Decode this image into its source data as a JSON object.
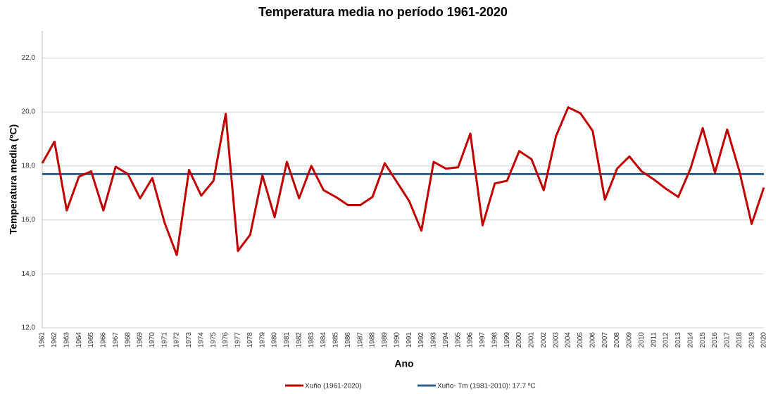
{
  "chart_data": {
    "type": "line",
    "title": "Temperatura media no período 1961-2020",
    "x_label": "Ano",
    "y_label": "Temperatura media (ºC)",
    "categories": [
      "1961",
      "1962",
      "1963",
      "1964",
      "1965",
      "1966",
      "1967",
      "1968",
      "1969",
      "1970",
      "1971",
      "1972",
      "1973",
      "1974",
      "1975",
      "1976",
      "1977",
      "1978",
      "1979",
      "1980",
      "1981",
      "1982",
      "1983",
      "1984",
      "1985",
      "1986",
      "1987",
      "1988",
      "1989",
      "1990",
      "1991",
      "1992",
      "1993",
      "1994",
      "1995",
      "1996",
      "1997",
      "1998",
      "1999",
      "2000",
      "2001",
      "2002",
      "2003",
      "2004",
      "2005",
      "2006",
      "2007",
      "2008",
      "2009",
      "2010",
      "2011",
      "2012",
      "2013",
      "2014",
      "2015",
      "2016",
      "2017",
      "2018",
      "2019",
      "2020"
    ],
    "series": [
      {
        "name": "Xuño (1961-2020)",
        "color": "#c00000",
        "values": [
          18.1,
          18.9,
          16.35,
          17.6,
          17.8,
          16.35,
          17.97,
          17.7,
          16.8,
          17.55,
          15.9,
          14.7,
          17.85,
          16.9,
          17.45,
          19.93,
          14.85,
          15.45,
          17.65,
          16.1,
          18.15,
          16.8,
          18.0,
          17.1,
          16.85,
          16.55,
          16.55,
          16.85,
          18.1,
          17.4,
          16.7,
          15.6,
          18.15,
          17.9,
          17.95,
          19.2,
          15.8,
          17.35,
          17.45,
          18.55,
          18.25,
          17.1,
          19.1,
          20.17,
          19.95,
          19.3,
          16.75,
          17.9,
          18.35,
          17.8,
          17.5,
          17.15,
          16.85,
          17.9,
          19.4,
          17.75,
          19.35,
          17.8,
          15.85,
          17.2
        ]
      },
      {
        "name": "Xuño- Tm (1981-2010): 17.7 ºC",
        "color": "#2e5f8a",
        "values": [
          17.7,
          17.7,
          17.7,
          17.7,
          17.7,
          17.7,
          17.7,
          17.7,
          17.7,
          17.7,
          17.7,
          17.7,
          17.7,
          17.7,
          17.7,
          17.7,
          17.7,
          17.7,
          17.7,
          17.7,
          17.7,
          17.7,
          17.7,
          17.7,
          17.7,
          17.7,
          17.7,
          17.7,
          17.7,
          17.7,
          17.7,
          17.7,
          17.7,
          17.7,
          17.7,
          17.7,
          17.7,
          17.7,
          17.7,
          17.7,
          17.7,
          17.7,
          17.7,
          17.7,
          17.7,
          17.7,
          17.7,
          17.7,
          17.7,
          17.7,
          17.7,
          17.7,
          17.7,
          17.7,
          17.7,
          17.7,
          17.7,
          17.7,
          17.7,
          17.7
        ]
      }
    ],
    "ylim": [
      12,
      23
    ],
    "yticks": [
      {
        "value": 12,
        "label": "12,0"
      },
      {
        "value": 14,
        "label": "14,0"
      },
      {
        "value": 16,
        "label": "16,0"
      },
      {
        "value": 18,
        "label": "18,0"
      },
      {
        "value": 20,
        "label": "20,0"
      },
      {
        "value": 22,
        "label": "22,0"
      }
    ],
    "grid": true,
    "legend": "bottom"
  }
}
